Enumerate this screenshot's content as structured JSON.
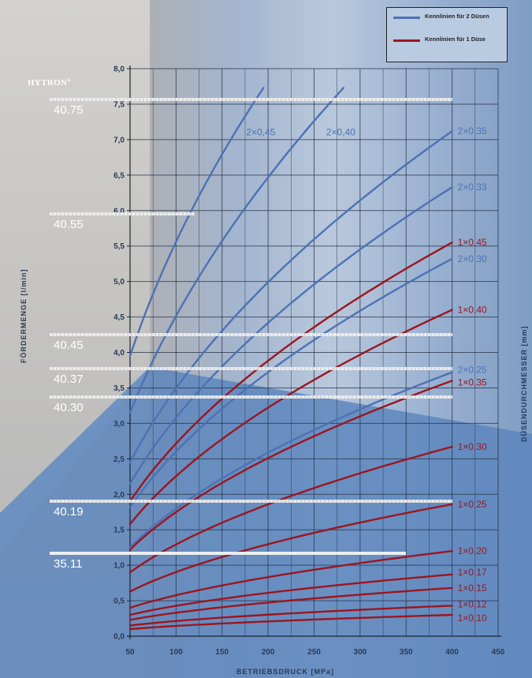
{
  "brand": {
    "name": "HYTRON"
  },
  "legend": [
    "Kennlinien für 2 Düsen",
    "Kennlinien für 1 Düse"
  ],
  "models": [
    "40.75",
    "40.55",
    "40.45",
    "40.37",
    "40.30",
    "40.19",
    "35.11"
  ],
  "chart_data": {
    "type": "line",
    "title": "",
    "xlabel": "BETRIEBSDRUCK [MPa]",
    "ylabel": "FÖRDERMENGE [l/min]",
    "y2label": "DÜSENDURCHMESSER [mm]",
    "xlim": [
      50,
      450
    ],
    "ylim": [
      0,
      8
    ],
    "xticks": [
      "50",
      "100",
      "150",
      "200",
      "250",
      "300",
      "350",
      "400",
      "450"
    ],
    "yticks": [
      "0,0",
      "0,5",
      "1,0",
      "1,5",
      "2,0",
      "2,5",
      "3,0",
      "3,5",
      "4,0",
      "4,5",
      "5,0",
      "5,5",
      "6,0",
      "6,5",
      "7,0",
      "7,5",
      "8,0"
    ],
    "colors": {
      "two_nozzles": "#4d72b4",
      "one_nozzle": "#9b1620"
    },
    "series": [
      {
        "name": "2x0,45",
        "group": "two",
        "x": [
          50,
          195
        ],
        "y": [
          3.95,
          7.73
        ]
      },
      {
        "name": "2x0,40",
        "group": "two",
        "x": [
          50,
          282
        ],
        "y": [
          3.15,
          7.73
        ]
      },
      {
        "name": "2x0,35",
        "group": "two",
        "x": [
          50,
          400
        ],
        "y": [
          2.45,
          7.12
        ]
      },
      {
        "name": "2x0,33",
        "group": "two",
        "x": [
          50,
          400
        ],
        "y": [
          2.15,
          6.33
        ]
      },
      {
        "name": "2x0,30",
        "group": "two",
        "x": [
          50,
          400
        ],
        "y": [
          1.82,
          5.32
        ]
      },
      {
        "name": "2x0,25",
        "group": "two",
        "x": [
          50,
          400
        ],
        "y": [
          1.25,
          3.72
        ]
      },
      {
        "name": "1x0,45",
        "group": "one",
        "x": [
          50,
          400
        ],
        "y": [
          1.9,
          5.55
        ]
      },
      {
        "name": "1x0,40",
        "group": "one",
        "x": [
          50,
          400
        ],
        "y": [
          1.58,
          4.6
        ]
      },
      {
        "name": "1x0,35",
        "group": "one",
        "x": [
          50,
          400
        ],
        "y": [
          1.22,
          3.6
        ]
      },
      {
        "name": "1x0,30",
        "group": "one",
        "x": [
          50,
          400
        ],
        "y": [
          0.9,
          2.67
        ]
      },
      {
        "name": "1x0,25",
        "group": "one",
        "x": [
          50,
          400
        ],
        "y": [
          0.63,
          1.86
        ]
      },
      {
        "name": "1x0,20",
        "group": "one",
        "x": [
          50,
          400
        ],
        "y": [
          0.4,
          1.2
        ]
      },
      {
        "name": "1x0,17",
        "group": "one",
        "x": [
          50,
          400
        ],
        "y": [
          0.3,
          0.87
        ]
      },
      {
        "name": "1x0,15",
        "group": "one",
        "x": [
          50,
          400
        ],
        "y": [
          0.23,
          0.68
        ]
      },
      {
        "name": "1x0,12",
        "group": "one",
        "x": [
          50,
          400
        ],
        "y": [
          0.15,
          0.43
        ]
      },
      {
        "name": "1x0,10",
        "group": "one",
        "x": [
          50,
          400
        ],
        "y": [
          0.1,
          0.3
        ]
      }
    ],
    "model_marks": [
      {
        "model": "40.75",
        "y": 7.57,
        "x_end": 400
      },
      {
        "model": "40.55",
        "y": 5.95,
        "x_end": 120
      },
      {
        "model": "40.45",
        "y": 4.25,
        "x_end": 400
      },
      {
        "model": "40.37",
        "y": 3.77,
        "x_end": 400
      },
      {
        "model": "40.30",
        "y": 3.37,
        "x_end": 400
      },
      {
        "model": "40.19",
        "y": 1.9,
        "x_end": 400
      },
      {
        "model": "35.11",
        "y": 1.17,
        "x_end": 350
      }
    ]
  }
}
